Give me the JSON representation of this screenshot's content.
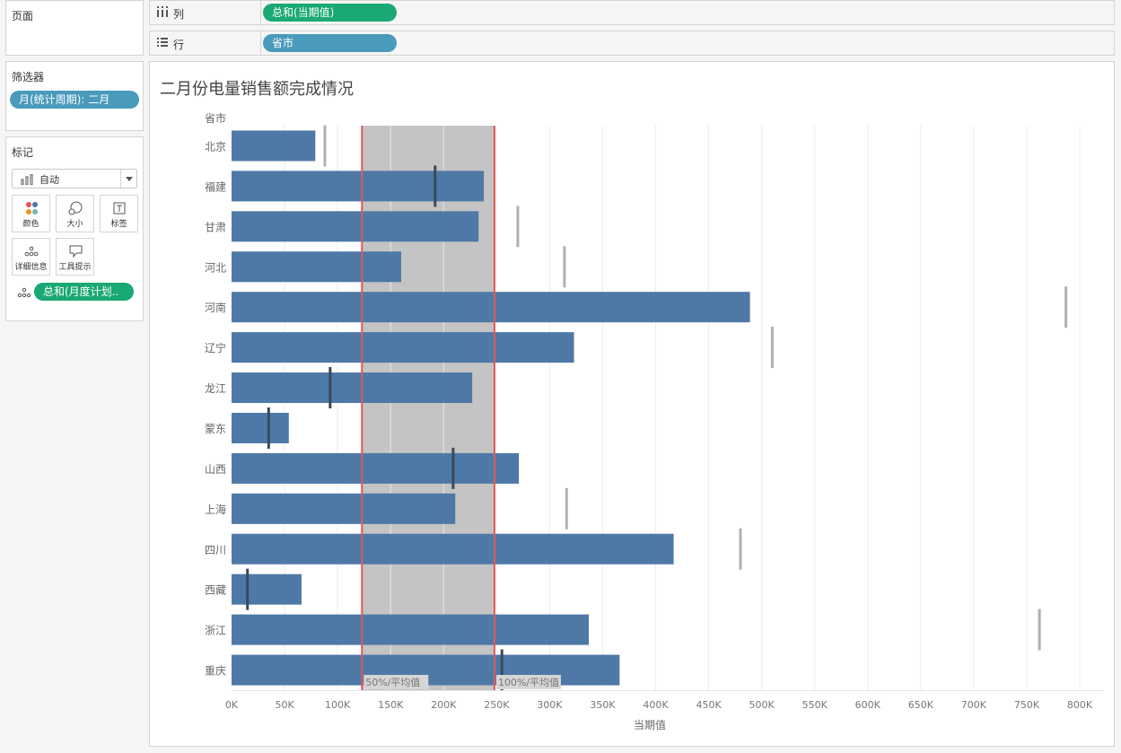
{
  "pages_panel": {
    "title": "页面"
  },
  "filters_panel": {
    "title": "筛选器",
    "pill": "月(统计周期): 二月"
  },
  "marks_panel": {
    "title": "标记",
    "type_value": "自动",
    "buttons": [
      {
        "icon": "color-icon",
        "label": "颜色"
      },
      {
        "icon": "size-icon",
        "label": "大小"
      },
      {
        "icon": "label-icon",
        "label": "标签"
      },
      {
        "icon": "detail-icon",
        "label": "详细信息"
      },
      {
        "icon": "tooltip-icon",
        "label": "工具提示"
      }
    ],
    "detail_pill": "总和(月度计划.."
  },
  "shelves": {
    "columns": {
      "label": "列",
      "pill": "总和(当期值)"
    },
    "rows": {
      "label": "行",
      "pill": "省市"
    }
  },
  "colors": {
    "bar": "#4e79a7",
    "band": "#c4c4c4",
    "ref_line": "#e05a5a",
    "target_dark": "#3a4a5a",
    "target_light": "#b0b0b0",
    "pill_teal": "#4a9bbb",
    "pill_green": "#1aa874"
  },
  "chart_data": {
    "type": "bar",
    "orientation": "horizontal",
    "title": "二月份电量销售额完成情况",
    "row_header": "省市",
    "xlabel": "当期值",
    "xlim": [
      0,
      820000
    ],
    "ticks": [
      0,
      50000,
      100000,
      150000,
      200000,
      250000,
      300000,
      350000,
      400000,
      450000,
      500000,
      550000,
      600000,
      650000,
      700000,
      750000,
      800000
    ],
    "tick_labels": [
      "0K",
      "50K",
      "100K",
      "150K",
      "200K",
      "250K",
      "300K",
      "350K",
      "400K",
      "450K",
      "500K",
      "550K",
      "600K",
      "650K",
      "700K",
      "750K",
      "800K"
    ],
    "categories": [
      "北京",
      "福建",
      "甘肃",
      "河北",
      "河南",
      "辽宁",
      "龙江",
      "蒙东",
      "山西",
      "上海",
      "四川",
      "西藏",
      "浙江",
      "重庆"
    ],
    "series": [
      {
        "name": "总和(当期值)",
        "values": [
          79000,
          238000,
          233000,
          160000,
          489000,
          323000,
          227000,
          54000,
          271000,
          211000,
          417000,
          66000,
          337000,
          366000
        ]
      },
      {
        "name": "总和(月度计划)",
        "values": [
          88000,
          192000,
          270000,
          314000,
          787000,
          510000,
          93000,
          35000,
          209000,
          316000,
          480000,
          15000,
          762000,
          255000
        ]
      }
    ],
    "reference_band": {
      "from": 123000,
      "to": 248000,
      "from_label": "50%/平均值",
      "to_label": "100%/平均值"
    }
  }
}
